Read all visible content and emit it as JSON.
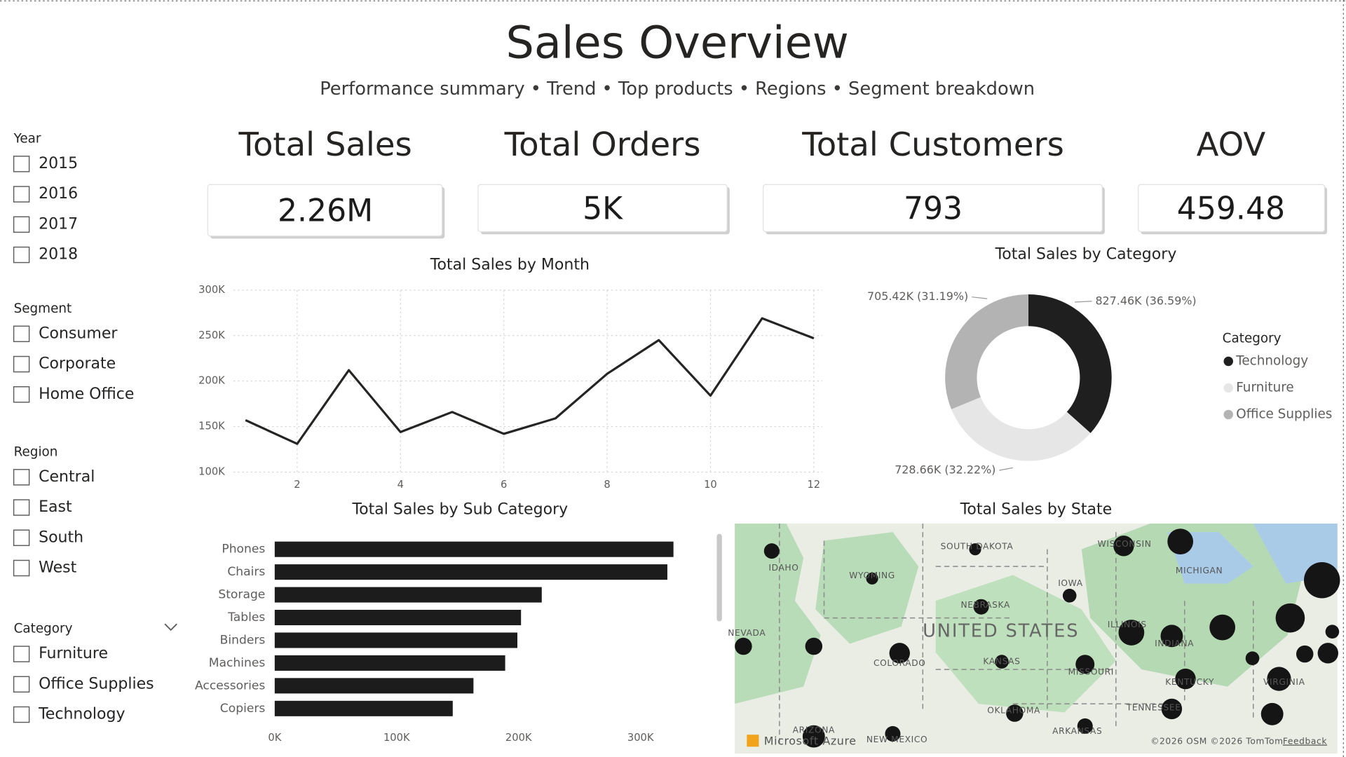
{
  "header": {
    "title": "Sales Overview",
    "subtitle": "Performance summary • Trend • Top products • Regions • Segment breakdown"
  },
  "filters": [
    {
      "title": "Year",
      "options": [
        "2015",
        "2016",
        "2017",
        "2018"
      ]
    },
    {
      "title": "Segment",
      "options": [
        "Consumer",
        "Corporate",
        "Home Office"
      ]
    },
    {
      "title": "Region",
      "options": [
        "Central",
        "East",
        "South",
        "West"
      ]
    },
    {
      "title": "Category",
      "options": [
        "Furniture",
        "Office Supplies",
        "Technology"
      ]
    }
  ],
  "kpis": [
    {
      "label": "Total Sales",
      "value": "2.26M"
    },
    {
      "label": "Total Orders",
      "value": "5K"
    },
    {
      "label": "Total Customers",
      "value": "793"
    },
    {
      "label": "AOV",
      "value": "459.48"
    }
  ],
  "chart_data": [
    {
      "type": "line",
      "title": "Total Sales by Month",
      "color": "#252423",
      "x": [
        1,
        2,
        3,
        4,
        5,
        6,
        7,
        8,
        9,
        10,
        11,
        12
      ],
      "values": [
        157000,
        131000,
        212000,
        144000,
        166000,
        142000,
        159000,
        208000,
        245000,
        184000,
        269000,
        247000
      ],
      "xlim": [
        1,
        12
      ],
      "xticks": [
        2,
        4,
        6,
        8,
        10,
        12
      ],
      "ylim": [
        100000,
        300000
      ],
      "yticks": [
        {
          "value": 100000,
          "label": "100K"
        },
        {
          "value": 150000,
          "label": "150K"
        },
        {
          "value": 200000,
          "label": "200K"
        },
        {
          "value": 250000,
          "label": "250K"
        },
        {
          "value": 300000,
          "label": "300K"
        }
      ],
      "grid": true
    },
    {
      "type": "donut",
      "title": "Total Sales by Category",
      "legend_title": "Category",
      "legend": "right",
      "categories": [
        "Technology",
        "Furniture",
        "Office Supplies"
      ],
      "values": [
        827460,
        728660,
        705420
      ],
      "value_labels": [
        "827.46K (36.59%)",
        "728.66K (32.22%)",
        "705.42K (31.19%)"
      ],
      "colors": [
        "#1f1f1f",
        "#e6e6e6",
        "#b3b3b3"
      ]
    },
    {
      "type": "hbar",
      "title": "Total Sales by Sub Category",
      "color": "#1c1c1c",
      "categories": [
        "Phones",
        "Chairs",
        "Storage",
        "Tables",
        "Binders",
        "Machines",
        "Accessories",
        "Copiers"
      ],
      "values": [
        327000,
        322000,
        219000,
        202000,
        199000,
        189000,
        163000,
        146000
      ],
      "xlim": [
        0,
        340000
      ],
      "xticks": [
        {
          "value": 0,
          "label": "0K"
        },
        {
          "value": 100000,
          "label": "100K"
        },
        {
          "value": 200000,
          "label": "200K"
        },
        {
          "value": 300000,
          "label": "300K"
        }
      ]
    },
    {
      "type": "map",
      "title": "Total Sales by State",
      "labels": [
        "SOUTH DAKOTA",
        "WISCONSIN",
        "MICHIGAN",
        "IDAHO",
        "WYOMING",
        "IOWA",
        "NEBRASKA",
        "NEVADA",
        "UNITED STATES",
        "ILLINOIS",
        "INDIANA",
        "COLORADO",
        "KANSAS",
        "MISSOURI",
        "KENTUCKY",
        "VIRGINIA",
        "OKLAHOMA",
        "TENNESSEE",
        "ARKANSAS",
        "ARIZONA",
        "NEW MEXICO"
      ],
      "attribution": [
        "Microsoft Azure",
        "©2026 OSM ©2026 TomTom",
        "Feedback"
      ]
    }
  ]
}
